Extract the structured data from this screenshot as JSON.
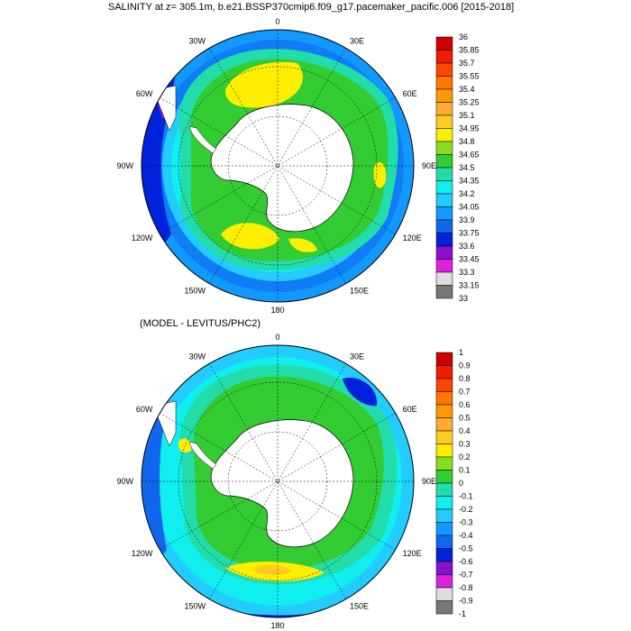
{
  "top_panel": {
    "title": "SALINITY at z= 305.1m, b.e21.BSSP370cmip6.f09_g17.pacemaker_pacific.006 [2015-2018]",
    "lon_labels": [
      "0",
      "30E",
      "60E",
      "90E",
      "120E",
      "150E",
      "180",
      "150W",
      "120W",
      "90W",
      "60W",
      "30W"
    ],
    "colorbar": {
      "labels": [
        "36",
        "35.85",
        "35.7",
        "35.55",
        "35.4",
        "35.25",
        "35.1",
        "34.95",
        "34.8",
        "34.65",
        "34.5",
        "34.35",
        "34.2",
        "34.05",
        "33.9",
        "33.75",
        "33.6",
        "33.45",
        "33.3",
        "33.15",
        "33"
      ],
      "colors": [
        "#cc0000",
        "#ee1c00",
        "#ff4400",
        "#ff7700",
        "#ff9900",
        "#ffaa33",
        "#ffcc22",
        "#ffee00",
        "#88dd22",
        "#33cc33",
        "#22ddaa",
        "#11eeee",
        "#22ccff",
        "#1199ff",
        "#1166ee",
        "#0022dd",
        "#8811cc",
        "#dd22dd",
        "#dddddd",
        "#777777"
      ]
    }
  },
  "bottom_panel": {
    "title": "(MODEL - LEVITUS/PHC2)",
    "lon_labels": [
      "0",
      "30E",
      "60E",
      "90E",
      "120E",
      "150E",
      "180",
      "150W",
      "120W",
      "90W",
      "60W",
      "30W"
    ],
    "colorbar": {
      "labels": [
        "1",
        "0.9",
        "0.8",
        "0.7",
        "0.6",
        "0.5",
        "0.4",
        "0.3",
        "0.2",
        "0.1",
        "0",
        "-0.1",
        "-0.2",
        "-0.3",
        "-0.4",
        "-0.5",
        "-0.6",
        "-0.7",
        "-0.8",
        "-0.9",
        "-1"
      ],
      "colors": [
        "#cc0000",
        "#ee1c00",
        "#ff4400",
        "#ff7700",
        "#ff9900",
        "#ffaa33",
        "#ffcc22",
        "#ffee00",
        "#88dd22",
        "#33cc33",
        "#22ddaa",
        "#11eeee",
        "#22ccff",
        "#1199ff",
        "#1166ee",
        "#0022dd",
        "#8811cc",
        "#dd22dd",
        "#dddddd",
        "#777777"
      ]
    }
  }
}
